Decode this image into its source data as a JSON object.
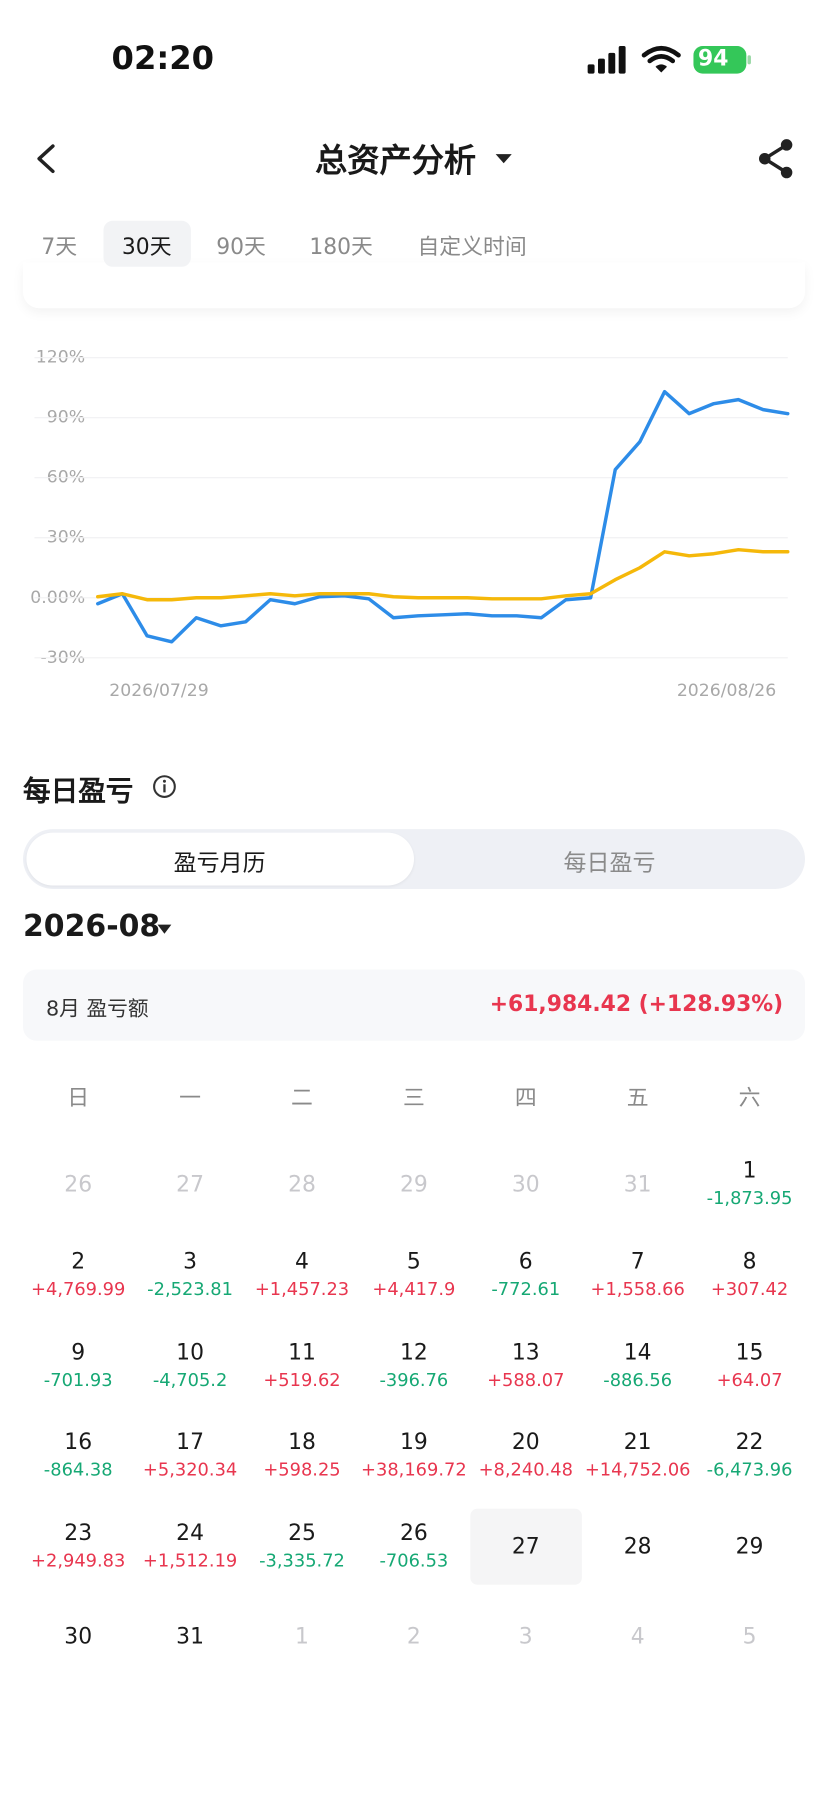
{
  "status_bar": {
    "time": "02:20",
    "battery": "94"
  },
  "header": {
    "title": "总资产分析"
  },
  "tabs": {
    "items": [
      "7天",
      "30天",
      "90天",
      "180天",
      "自定义时间"
    ],
    "active": 1
  },
  "chart_data": {
    "type": "line",
    "categories": [
      "2026/07/29",
      null,
      null,
      null,
      null,
      null,
      null,
      null,
      null,
      null,
      null,
      null,
      null,
      null,
      null,
      null,
      null,
      null,
      null,
      null,
      null,
      null,
      null,
      null,
      null,
      null,
      null,
      null,
      "2026/08/26"
    ],
    "series": [
      {
        "color": "#2d8ce8",
        "values": [
          -3,
          2,
          -19,
          -22,
          -10,
          -14,
          -12,
          -1,
          -3,
          0.5,
          1,
          -0.5,
          -10,
          -9,
          -8.5,
          -8,
          -9,
          -9,
          -10,
          -1,
          0,
          64,
          78,
          103,
          92,
          97,
          99,
          94,
          92
        ]
      },
      {
        "color": "#f5b80a",
        "values": [
          0.5,
          2,
          -1,
          -1,
          0,
          0,
          1,
          2,
          1,
          2,
          2,
          2,
          0.5,
          0,
          0,
          0,
          -0.5,
          -0.5,
          -0.5,
          1,
          2,
          9,
          15,
          23,
          21,
          22,
          24,
          23,
          23
        ]
      }
    ],
    "ylim": [
      -30,
      120
    ],
    "yticks": [
      {
        "value": 120,
        "label": "120%"
      },
      {
        "value": 90,
        "label": "90%"
      },
      {
        "value": 60,
        "label": "60%"
      },
      {
        "value": 30,
        "label": "30%"
      },
      {
        "value": 0,
        "label": "0.00%"
      },
      {
        "value": -30,
        "label": "-30%"
      }
    ],
    "grid": true
  },
  "daily": {
    "title": "每日盈亏",
    "segments": [
      "盈亏月历",
      "每日盈亏"
    ],
    "active_segment": 0,
    "month": "2026-08",
    "summary": {
      "label": "8月 盈亏额",
      "value": "+61,984.42 (+128.93%)"
    }
  },
  "calendar": {
    "weekdays": [
      "日",
      "一",
      "二",
      "三",
      "四",
      "五",
      "六"
    ],
    "weeks": [
      [
        {
          "day": 26,
          "muted": true
        },
        {
          "day": 27,
          "muted": true
        },
        {
          "day": 28,
          "muted": true
        },
        {
          "day": 29,
          "muted": true
        },
        {
          "day": 30,
          "muted": true
        },
        {
          "day": 31,
          "muted": true
        },
        {
          "day": 1,
          "pnl": "-1,873.95"
        }
      ],
      [
        {
          "day": 2,
          "pnl": "+4,769.99"
        },
        {
          "day": 3,
          "pnl": "-2,523.81"
        },
        {
          "day": 4,
          "pnl": "+1,457.23"
        },
        {
          "day": 5,
          "pnl": "+4,417.9"
        },
        {
          "day": 6,
          "pnl": "-772.61"
        },
        {
          "day": 7,
          "pnl": "+1,558.66"
        },
        {
          "day": 8,
          "pnl": "+307.42"
        }
      ],
      [
        {
          "day": 9,
          "pnl": "-701.93"
        },
        {
          "day": 10,
          "pnl": "-4,705.2"
        },
        {
          "day": 11,
          "pnl": "+519.62"
        },
        {
          "day": 12,
          "pnl": "-396.76"
        },
        {
          "day": 13,
          "pnl": "+588.07"
        },
        {
          "day": 14,
          "pnl": "-886.56"
        },
        {
          "day": 15,
          "pnl": "+64.07"
        }
      ],
      [
        {
          "day": 16,
          "pnl": "-864.38"
        },
        {
          "day": 17,
          "pnl": "+5,320.34"
        },
        {
          "day": 18,
          "pnl": "+598.25"
        },
        {
          "day": 19,
          "pnl": "+38,169.72"
        },
        {
          "day": 20,
          "pnl": "+8,240.48"
        },
        {
          "day": 21,
          "pnl": "+14,752.06"
        },
        {
          "day": 22,
          "pnl": "-6,473.96"
        }
      ],
      [
        {
          "day": 23,
          "pnl": "+2,949.83"
        },
        {
          "day": 24,
          "pnl": "+1,512.19"
        },
        {
          "day": 25,
          "pnl": "-3,335.72"
        },
        {
          "day": 26,
          "pnl": "-706.53"
        },
        {
          "day": 27,
          "today": true
        },
        {
          "day": 28
        },
        {
          "day": 29
        }
      ],
      [
        {
          "day": 30
        },
        {
          "day": 31
        },
        {
          "day": 1,
          "muted": true
        },
        {
          "day": 2,
          "muted": true
        },
        {
          "day": 3,
          "muted": true
        },
        {
          "day": 4,
          "muted": true
        },
        {
          "day": 5,
          "muted": true
        }
      ]
    ]
  }
}
